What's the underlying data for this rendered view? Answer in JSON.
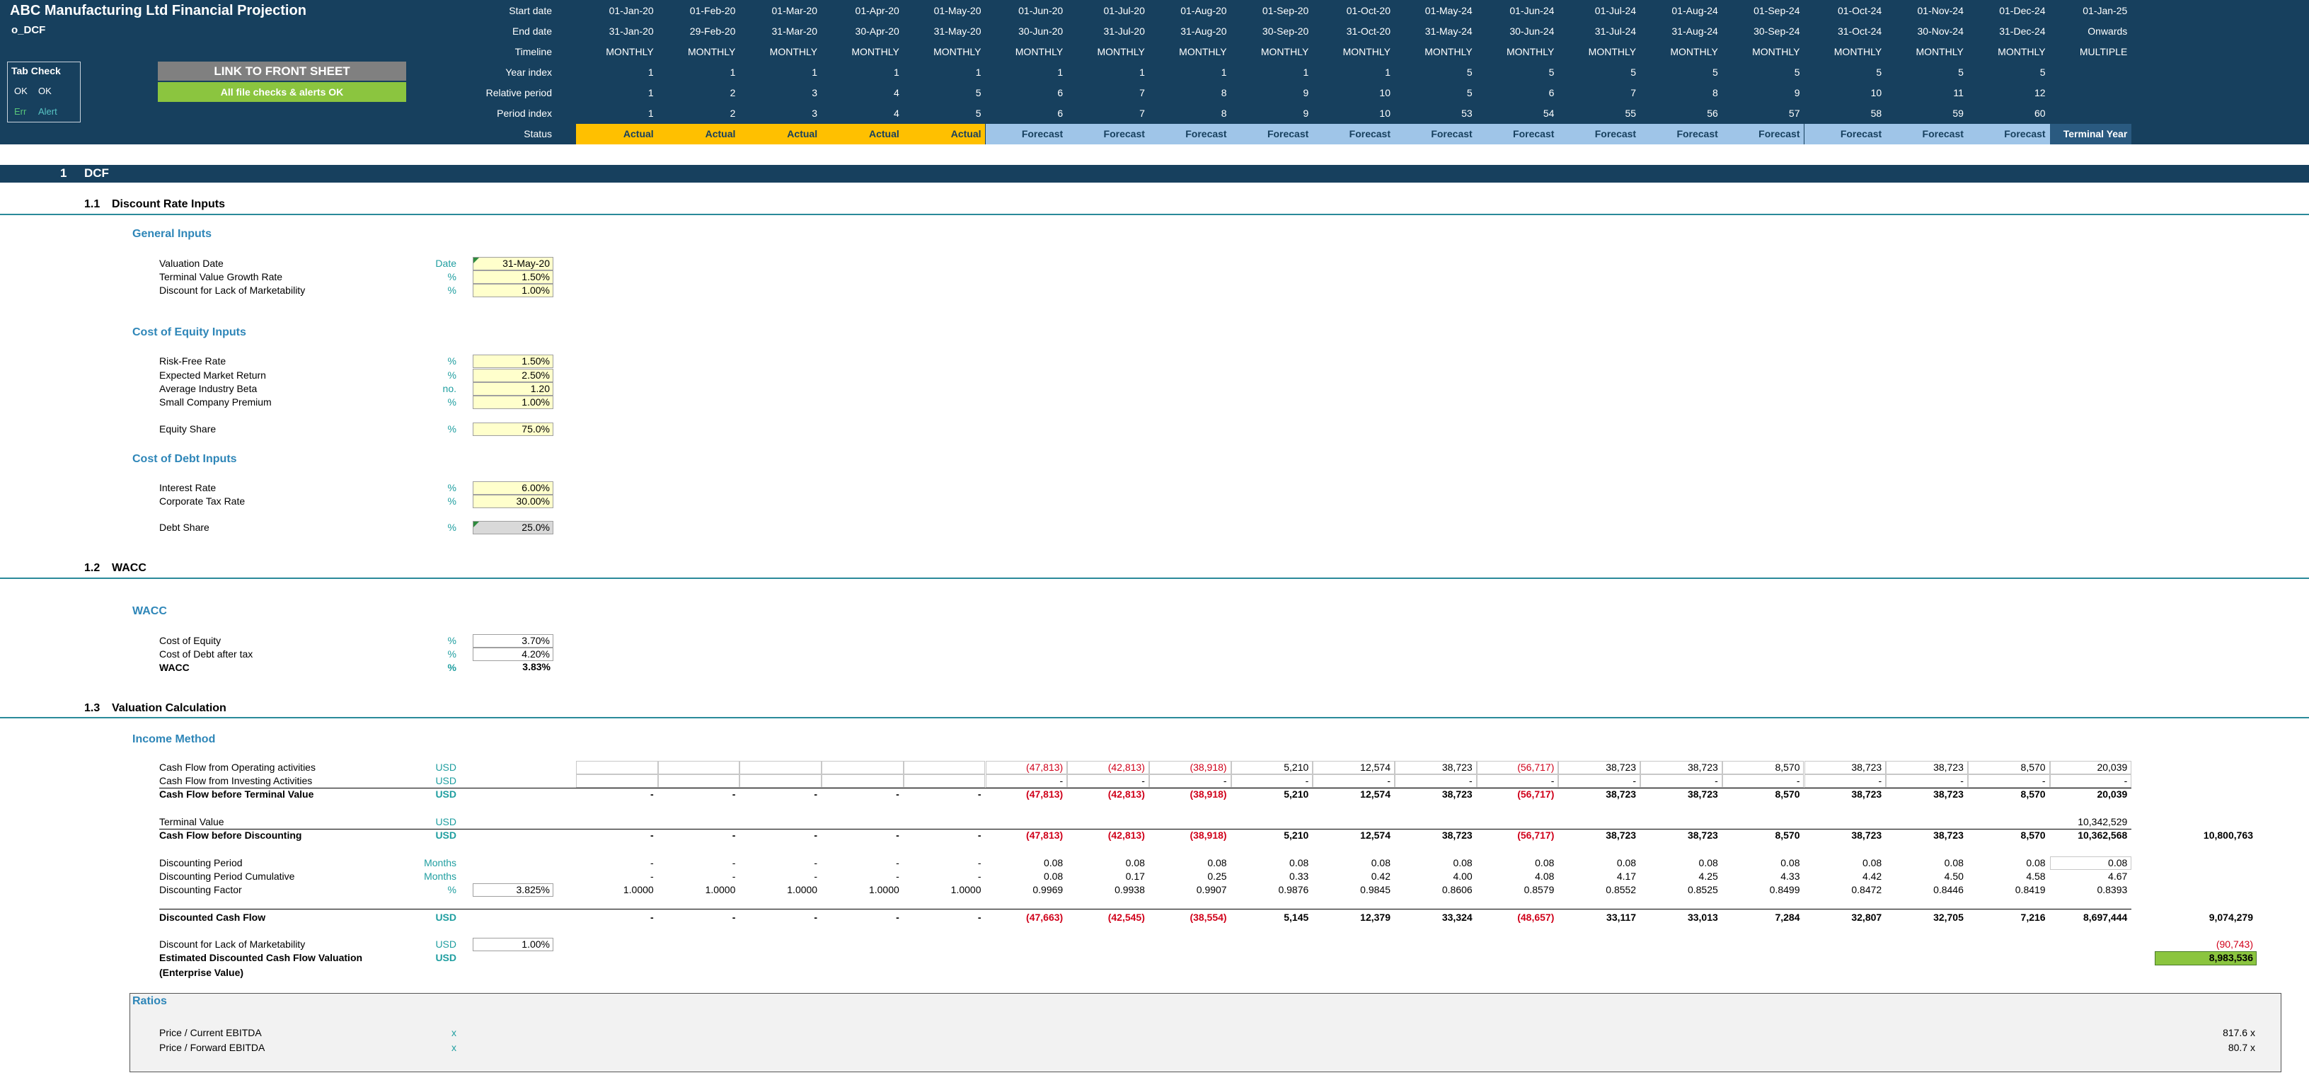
{
  "header": {
    "title": "ABC Manufacturing Ltd Financial Projection",
    "sheet": "o_DCF",
    "tab_check": {
      "title": "Tab Check",
      "row1": [
        "OK",
        "OK"
      ],
      "row2": [
        "Err",
        "Alert"
      ]
    },
    "link_button": "LINK TO FRONT SHEET",
    "checks_status": "All file checks & alerts OK"
  },
  "timeline": {
    "labels": [
      "Start date",
      "End date",
      "Timeline",
      "Year index",
      "Relative period",
      "Period index",
      "Status"
    ],
    "rows": [
      [
        "01-Jan-20",
        "01-Feb-20",
        "01-Mar-20",
        "01-Apr-20",
        "01-May-20",
        "01-Jun-20",
        "01-Jul-20",
        "01-Aug-20",
        "01-Sep-20",
        "01-Oct-20",
        "01-May-24",
        "01-Jun-24",
        "01-Jul-24",
        "01-Aug-24",
        "01-Sep-24",
        "01-Oct-24",
        "01-Nov-24",
        "01-Dec-24",
        "01-Jan-25"
      ],
      [
        "31-Jan-20",
        "29-Feb-20",
        "31-Mar-20",
        "30-Apr-20",
        "31-May-20",
        "30-Jun-20",
        "31-Jul-20",
        "31-Aug-20",
        "30-Sep-20",
        "31-Oct-20",
        "31-May-24",
        "30-Jun-24",
        "31-Jul-24",
        "31-Aug-24",
        "30-Sep-24",
        "31-Oct-24",
        "30-Nov-24",
        "31-Dec-24",
        "Onwards"
      ],
      [
        "MONTHLY",
        "MONTHLY",
        "MONTHLY",
        "MONTHLY",
        "MONTHLY",
        "MONTHLY",
        "MONTHLY",
        "MONTHLY",
        "MONTHLY",
        "MONTHLY",
        "MONTHLY",
        "MONTHLY",
        "MONTHLY",
        "MONTHLY",
        "MONTHLY",
        "MONTHLY",
        "MONTHLY",
        "MONTHLY",
        "MULTIPLE"
      ],
      [
        1,
        1,
        1,
        1,
        1,
        1,
        1,
        1,
        1,
        1,
        5,
        5,
        5,
        5,
        5,
        5,
        5,
        5,
        null
      ],
      [
        1,
        2,
        3,
        4,
        5,
        6,
        7,
        8,
        9,
        10,
        5,
        6,
        7,
        8,
        9,
        10,
        11,
        12,
        null
      ],
      [
        1,
        2,
        3,
        4,
        5,
        6,
        7,
        8,
        9,
        10,
        53,
        54,
        55,
        56,
        57,
        58,
        59,
        60,
        null
      ],
      [
        "Actual",
        "Actual",
        "Actual",
        "Actual",
        "Actual",
        "Forecast",
        "Forecast",
        "Forecast",
        "Forecast",
        "Forecast",
        "Forecast",
        "Forecast",
        "Forecast",
        "Forecast",
        "Forecast",
        "Forecast",
        "Forecast",
        "Forecast",
        "Terminal Year"
      ]
    ]
  },
  "dcf": {
    "number": "1",
    "title": "DCF"
  },
  "discount_rate_inputs": {
    "number": "1.1",
    "title": "Discount Rate Inputs",
    "groups": [
      {
        "title": "General Inputs",
        "rows": [
          {
            "label": "Valuation Date",
            "unit": "Date",
            "value": "31-May-20"
          },
          {
            "label": "Terminal Value Growth Rate",
            "unit": "%",
            "value": "1.50%"
          },
          {
            "label": "Discount for Lack of Marketability",
            "unit": "%",
            "value": "1.00%"
          }
        ]
      },
      {
        "title": "Cost of Equity Inputs",
        "rows": [
          {
            "label": "Risk-Free Rate",
            "unit": "%",
            "value": "1.50%"
          },
          {
            "label": "Expected Market Return",
            "unit": "%",
            "value": "2.50%"
          },
          {
            "label": "Average Industry Beta",
            "unit": "no.",
            "value": "1.20"
          },
          {
            "label": "Small Company Premium",
            "unit": "%",
            "value": "1.00%"
          },
          {
            "label": "Equity Share",
            "unit": "%",
            "value": "75.0%"
          }
        ]
      },
      {
        "title": "Cost of Debt Inputs",
        "rows": [
          {
            "label": "Interest Rate",
            "unit": "%",
            "value": "6.00%"
          },
          {
            "label": "Corporate Tax Rate",
            "unit": "%",
            "value": "30.00%"
          },
          {
            "label": "Debt Share",
            "unit": "%",
            "value": "25.0%"
          }
        ]
      }
    ]
  },
  "wacc": {
    "number": "1.2",
    "title": "WACC",
    "groups": [
      {
        "title": "WACC",
        "rows": [
          {
            "label": "Cost of Equity",
            "unit": "%",
            "value": "3.70%"
          },
          {
            "label": "Cost of Debt after tax",
            "unit": "%",
            "value": "4.20%"
          },
          {
            "label": "WACC",
            "unit": "%",
            "value": "3.83%"
          }
        ]
      }
    ]
  },
  "valuation": {
    "number": "1.3",
    "title": "Valuation Calculation",
    "subtitle": "Income Method",
    "rows": [
      {
        "label": "Cash Flow from Operating activities",
        "unit": "USD",
        "cells": [
          null,
          null,
          null,
          null,
          null,
          "(47,813)",
          "(42,813)",
          "(38,918)",
          "5,210",
          "12,574",
          "38,723",
          "(56,717)",
          "38,723",
          "38,723",
          "8,570",
          "38,723",
          "38,723",
          "8,570",
          "20,039"
        ]
      },
      {
        "label": "Cash Flow from Investing Activities",
        "unit": "USD",
        "cells": [
          null,
          null,
          null,
          null,
          null,
          "-",
          "-",
          "-",
          "-",
          "-",
          "-",
          "-",
          "-",
          "-",
          "-",
          "-",
          "-",
          "-",
          "-"
        ]
      },
      {
        "label": "Cash Flow before Terminal Value",
        "unit": "USD",
        "cells": [
          "-",
          "-",
          "-",
          "-",
          "-",
          "(47,813)",
          "(42,813)",
          "(38,918)",
          "5,210",
          "12,574",
          "38,723",
          "(56,717)",
          "38,723",
          "38,723",
          "8,570",
          "38,723",
          "38,723",
          "8,570",
          "20,039"
        ]
      },
      {
        "label": "Terminal Value",
        "unit": "USD",
        "cells": [
          null,
          null,
          null,
          null,
          null,
          null,
          null,
          null,
          null,
          null,
          null,
          null,
          null,
          null,
          null,
          null,
          null,
          null,
          "10,342,529"
        ]
      },
      {
        "label": "Cash Flow before Discounting",
        "unit": "USD",
        "cells": [
          "-",
          "-",
          "-",
          "-",
          "-",
          "(47,813)",
          "(42,813)",
          "(38,918)",
          "5,210",
          "12,574",
          "38,723",
          "(56,717)",
          "38,723",
          "38,723",
          "8,570",
          "38,723",
          "38,723",
          "8,570",
          "10,362,568"
        ],
        "total": "10,800,763"
      },
      {
        "label": "Discounting Period",
        "unit": "Months",
        "cells": [
          "-",
          "-",
          "-",
          "-",
          "-",
          "0.08",
          "0.08",
          "0.08",
          "0.08",
          "0.08",
          "0.08",
          "0.08",
          "0.08",
          "0.08",
          "0.08",
          "0.08",
          "0.08",
          "0.08",
          "0.08"
        ]
      },
      {
        "label": "Discounting Period Cumulative",
        "unit": "Months",
        "cells": [
          "-",
          "-",
          "-",
          "-",
          "-",
          "0.08",
          "0.17",
          "0.25",
          "0.33",
          "0.42",
          "4.00",
          "4.08",
          "4.17",
          "4.25",
          "4.33",
          "4.42",
          "4.50",
          "4.58",
          "4.67"
        ]
      },
      {
        "label": "Discounting Factor",
        "unit": "%",
        "input": "3.825%",
        "cells": [
          "1.0000",
          "1.0000",
          "1.0000",
          "1.0000",
          "1.0000",
          "0.9969",
          "0.9938",
          "0.9907",
          "0.9876",
          "0.9845",
          "0.8606",
          "0.8579",
          "0.8552",
          "0.8525",
          "0.8499",
          "0.8472",
          "0.8446",
          "0.8419",
          "0.8393"
        ]
      },
      {
        "label": "Discounted Cash Flow",
        "unit": "USD",
        "cells": [
          "-",
          "-",
          "-",
          "-",
          "-",
          "(47,663)",
          "(42,545)",
          "(38,554)",
          "5,145",
          "12,379",
          "33,324",
          "(48,657)",
          "33,117",
          "33,013",
          "7,284",
          "32,807",
          "32,705",
          "7,216",
          "8,697,444"
        ],
        "total": "9,074,279"
      },
      {
        "label": "Discount for Lack of Marketability",
        "unit": "USD",
        "input": "1.00%",
        "total": "(90,743)"
      },
      {
        "label": "Estimated Discounted Cash Flow Valuation",
        "label_line2": "(Enterprise Value)",
        "unit": "USD",
        "total": "8,983,536"
      }
    ]
  },
  "ratios": {
    "title": "Ratios",
    "rows": [
      {
        "label": "Price / Current EBITDA",
        "unit": "x",
        "value": "817.6 x"
      },
      {
        "label": "Price / Forward EBITDA",
        "unit": "x",
        "value": "80.7 x"
      }
    ]
  }
}
